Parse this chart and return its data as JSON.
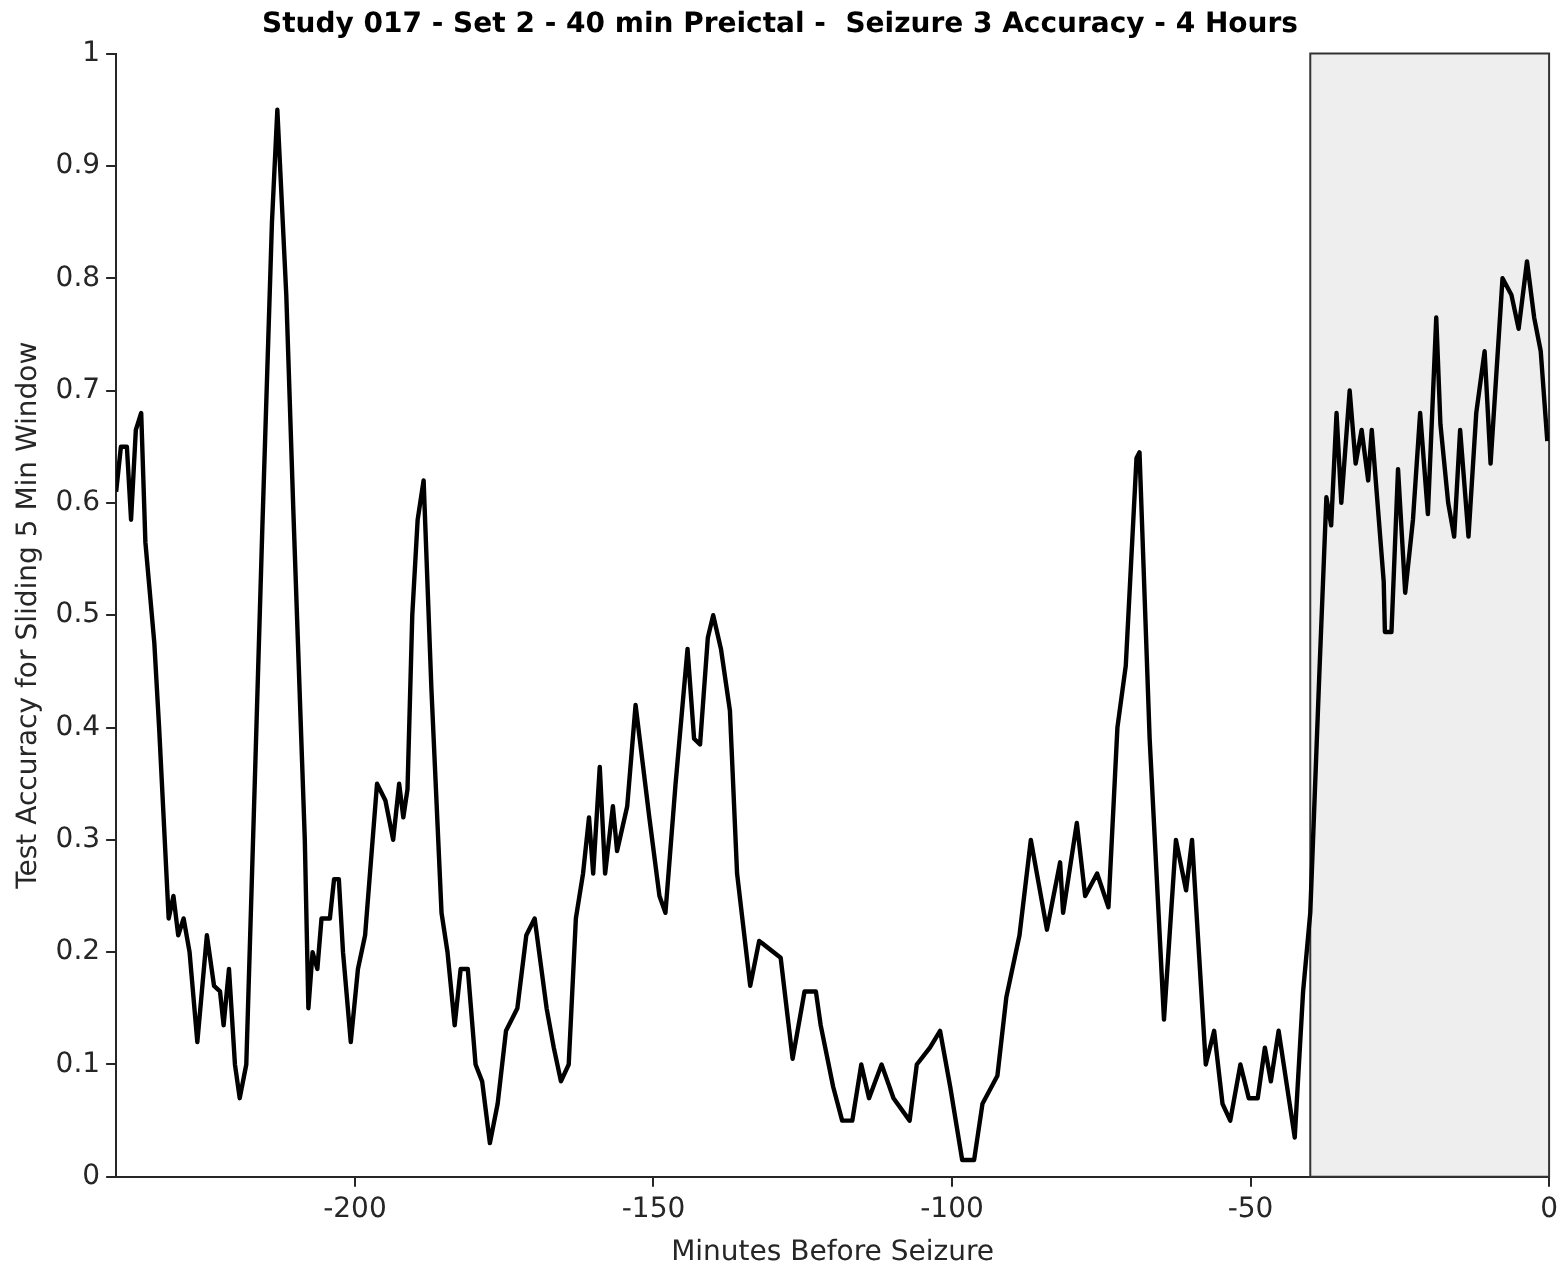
{
  "chart_data": {
    "type": "line",
    "title": "Study 017 - Set 2 - 40 min Preictal -  Seizure 3 Accuracy - 4 Hours",
    "xlabel": "Minutes Before Seizure",
    "ylabel": "Test Accuracy for Sliding 5 Min Window",
    "x": [
      -240,
      -239.2,
      -238.2,
      -237.5,
      -236.7,
      -235.8,
      -235.1,
      -233.6,
      -232.8,
      -231.2,
      -230.4,
      -229.6,
      -228.7,
      -227.7,
      -226.4,
      -224.8,
      -223.6,
      -222.6,
      -222,
      -221.1,
      -220.1,
      -219.3,
      -218.2,
      -216.7,
      -215.5,
      -213.9,
      -213,
      -211.5,
      -210.3,
      -208.4,
      -207.8,
      -207.1,
      -206.3,
      -205.6,
      -204.2,
      -203.5,
      -202.7,
      -202,
      -200.7,
      -199.5,
      -198.3,
      -196.3,
      -194.9,
      -193.6,
      -192.6,
      -191.9,
      -191.2,
      -190.4,
      -189.5,
      -188.5,
      -187.2,
      -185.5,
      -184.5,
      -183.3,
      -182.3,
      -181.1,
      -179.8,
      -178.7,
      -177.4,
      -176.1,
      -174.7,
      -172.8,
      -171.3,
      -169.9,
      -167.9,
      -166.7,
      -165.5,
      -164.2,
      -163,
      -161.8,
      -160.8,
      -160.1,
      -159,
      -158.1,
      -156.8,
      -156.1,
      -154.4,
      -153,
      -150.7,
      -149,
      -148,
      -146.3,
      -144.3,
      -143.2,
      -142.2,
      -140.9,
      -140,
      -138.7,
      -137.2,
      -136,
      -133.8,
      -132.3,
      -128.7,
      -126.7,
      -124.7,
      -122.8,
      -122,
      -119.9,
      -118.4,
      -116.7,
      -115.2,
      -113.9,
      -111.8,
      -109.8,
      -107.1,
      -105.9,
      -103.7,
      -102,
      -100.3,
      -98.3,
      -96.3,
      -94.9,
      -92.4,
      -90.9,
      -88.7,
      -86.8,
      -84.1,
      -81.9,
      -81.4,
      -79.1,
      -77.7,
      -75.7,
      -73.8,
      -72.3,
      -70.9,
      -69.1,
      -68.6,
      -66.9,
      -64.5,
      -62.5,
      -60.8,
      -59.8,
      -57.5,
      -56.1,
      -54.7,
      -53.4,
      -51.7,
      -50.3,
      -48.8,
      -47.6,
      -46.6,
      -45.3,
      -42.6,
      -41.2,
      -40,
      -38.5,
      -37.3,
      -36.5,
      -35.6,
      -34.8,
      -33.4,
      -32.4,
      -31.4,
      -30.3,
      -29.7,
      -27.7,
      -27.5,
      -26.4,
      -25.3,
      -24.1,
      -22.8,
      -21.6,
      -20.3,
      -18.9,
      -18.2,
      -16.9,
      -15.9,
      -14.9,
      -13.5,
      -12.2,
      -10.8,
      -9.8,
      -7.8,
      -6.3,
      -5.1,
      -3.7,
      -2.5,
      -1.4,
      -0.3
    ],
    "values": [
      0.61,
      0.65,
      0.65,
      0.585,
      0.665,
      0.68,
      0.565,
      0.475,
      0.4,
      0.23,
      0.25,
      0.215,
      0.23,
      0.2,
      0.12,
      0.215,
      0.17,
      0.165,
      0.135,
      0.185,
      0.1,
      0.07,
      0.1,
      0.365,
      0.58,
      0.85,
      0.95,
      0.785,
      0.59,
      0.3,
      0.15,
      0.2,
      0.185,
      0.23,
      0.23,
      0.265,
      0.265,
      0.2,
      0.12,
      0.185,
      0.215,
      0.35,
      0.335,
      0.3,
      0.35,
      0.32,
      0.345,
      0.5,
      0.585,
      0.62,
      0.435,
      0.235,
      0.2,
      0.135,
      0.185,
      0.185,
      0.1,
      0.085,
      0.03,
      0.065,
      0.13,
      0.15,
      0.215,
      0.23,
      0.15,
      0.115,
      0.085,
      0.1,
      0.23,
      0.27,
      0.32,
      0.27,
      0.365,
      0.27,
      0.33,
      0.29,
      0.33,
      0.42,
      0.32,
      0.25,
      0.235,
      0.35,
      0.47,
      0.39,
      0.385,
      0.48,
      0.5,
      0.47,
      0.415,
      0.27,
      0.17,
      0.21,
      0.195,
      0.105,
      0.165,
      0.165,
      0.135,
      0.08,
      0.05,
      0.05,
      0.1,
      0.07,
      0.1,
      0.07,
      0.05,
      0.1,
      0.115,
      0.13,
      0.08,
      0.015,
      0.015,
      0.065,
      0.09,
      0.16,
      0.215,
      0.3,
      0.22,
      0.28,
      0.235,
      0.315,
      0.25,
      0.27,
      0.24,
      0.4,
      0.455,
      0.64,
      0.645,
      0.39,
      0.14,
      0.3,
      0.255,
      0.3,
      0.1,
      0.13,
      0.065,
      0.05,
      0.1,
      0.07,
      0.07,
      0.115,
      0.085,
      0.13,
      0.035,
      0.165,
      0.235,
      0.445,
      0.605,
      0.58,
      0.68,
      0.6,
      0.7,
      0.635,
      0.665,
      0.62,
      0.665,
      0.53,
      0.485,
      0.485,
      0.63,
      0.52,
      0.585,
      0.68,
      0.59,
      0.765,
      0.67,
      0.6,
      0.57,
      0.665,
      0.57,
      0.68,
      0.735,
      0.635,
      0.8,
      0.785,
      0.755,
      0.815,
      0.765,
      0.735,
      0.655
    ],
    "color": "#000000",
    "xlim": [
      -240,
      0
    ],
    "xticks": [
      -200,
      -150,
      -100,
      -50,
      0
    ],
    "ylim": [
      0,
      1
    ],
    "yticks": [
      0,
      0.1,
      0.2,
      0.3,
      0.4,
      0.5,
      0.6,
      0.7,
      0.8,
      0.9,
      1
    ],
    "bands": [
      {
        "axis": "x",
        "from": -40,
        "to": 0,
        "color": "#eeeeee"
      }
    ],
    "grid": false,
    "legend": false,
    "marker": "none",
    "line_style": "solid"
  }
}
